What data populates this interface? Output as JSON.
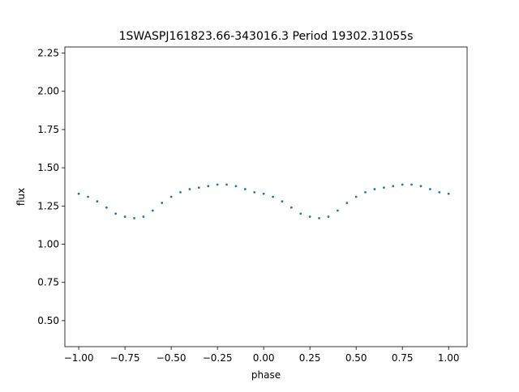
{
  "chart_data": {
    "type": "scatter",
    "title": "1SWASPJ161823.66-343016.3 Period 19302.31055s",
    "xlabel": "phase",
    "ylabel": "flux",
    "xlim": [
      -1.075,
      1.1
    ],
    "ylim": [
      0.33,
      2.29
    ],
    "xticks": [
      -1.0,
      -0.75,
      -0.5,
      -0.25,
      0.0,
      0.25,
      0.5,
      0.75,
      1.0
    ],
    "xtick_labels": [
      "−1.00",
      "−0.75",
      "−0.50",
      "−0.25",
      "0.00",
      "0.25",
      "0.50",
      "0.75",
      "1.00"
    ],
    "yticks": [
      0.5,
      0.75,
      1.0,
      1.25,
      1.5,
      1.75,
      2.0,
      2.25
    ],
    "ytick_labels": [
      "0.50",
      "0.75",
      "1.00",
      "1.25",
      "1.50",
      "1.75",
      "2.00",
      "2.25"
    ],
    "grid": false,
    "marker_color": "#1f77b4",
    "series": [
      {
        "x": [
          -1.0,
          -0.95,
          -0.9,
          -0.85,
          -0.8,
          -0.75,
          -0.7,
          -0.65,
          -0.6,
          -0.55,
          -0.5,
          -0.45,
          -0.4,
          -0.35,
          -0.3,
          -0.25,
          -0.2,
          -0.15,
          -0.1,
          -0.05,
          0.0,
          0.05,
          0.1,
          0.15,
          0.2,
          0.25,
          0.3,
          0.35,
          0.4,
          0.45,
          0.5,
          0.55,
          0.6,
          0.65,
          0.7,
          0.75,
          0.8,
          0.85,
          0.9,
          0.95,
          1.0
        ],
        "y": [
          1.33,
          1.31,
          1.28,
          1.24,
          1.2,
          1.18,
          1.17,
          1.18,
          1.22,
          1.27,
          1.31,
          1.34,
          1.36,
          1.37,
          1.38,
          1.39,
          1.39,
          1.38,
          1.36,
          1.34,
          1.33,
          1.31,
          1.28,
          1.24,
          1.2,
          1.18,
          1.17,
          1.18,
          1.22,
          1.27,
          1.31,
          1.34,
          1.36,
          1.37,
          1.38,
          1.39,
          1.39,
          1.38,
          1.36,
          1.34,
          1.33
        ]
      }
    ]
  }
}
